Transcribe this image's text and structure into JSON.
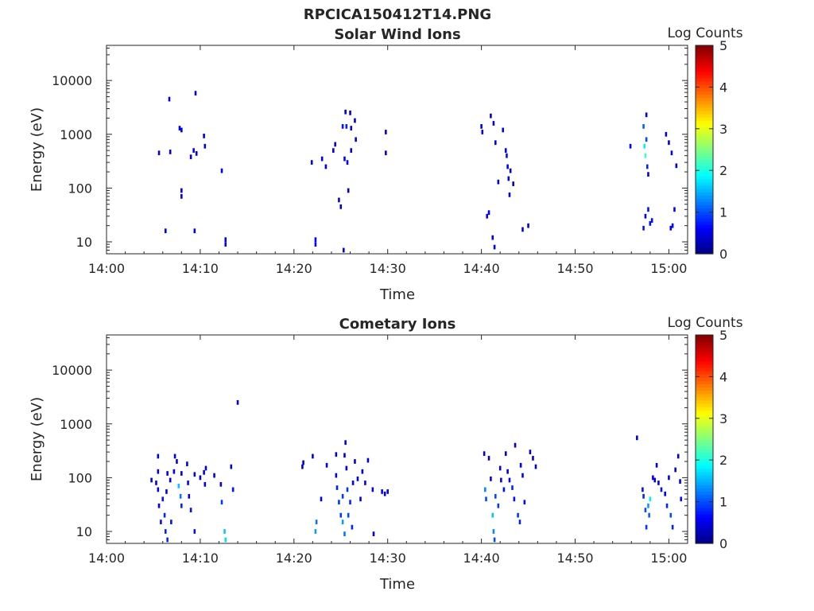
{
  "figure": {
    "title": "RPCICA150412T14.PNG"
  },
  "colors": {
    "axis": "#262626",
    "colormap": [
      "#000080",
      "#0000ff",
      "#0080ff",
      "#00ffff",
      "#80ff80",
      "#ffff00",
      "#ff8000",
      "#ff0000",
      "#800000"
    ]
  },
  "chart_data": [
    {
      "type": "heatmap",
      "title": "Solar Wind Ions",
      "xlabel": "Time",
      "ylabel": "Energy (eV)",
      "yscale": "log",
      "xlim": [
        "14:00",
        "15:02"
      ],
      "ylim": [
        6,
        45000
      ],
      "x_ticks": [
        "14:00",
        "14:10",
        "14:20",
        "14:30",
        "14:40",
        "14:50",
        "15:00"
      ],
      "y_ticks": [
        "10",
        "100",
        "1000",
        "10000"
      ],
      "colorbar": {
        "label": "Log Counts",
        "range": [
          0,
          5
        ],
        "ticks": [
          "0",
          "1",
          "2",
          "3",
          "4",
          "5"
        ]
      },
      "grid": false,
      "pixels": [
        [
          "14:05.6",
          450,
          0.5
        ],
        [
          "14:06.3",
          16,
          0.5
        ],
        [
          "14:06.7",
          4500,
          0.4
        ],
        [
          "14:06.8",
          470,
          0.5
        ],
        [
          "14:07.8",
          1300,
          0.6
        ],
        [
          "14:08.0",
          1200,
          0.5
        ],
        [
          "14:08.0",
          70,
          0.5
        ],
        [
          "14:08.0",
          90,
          0.5
        ],
        [
          "14:09.0",
          380,
          0.5
        ],
        [
          "14:09.3",
          500,
          0.5
        ],
        [
          "14:09.4",
          16,
          0.5
        ],
        [
          "14:09.5",
          5800,
          0.4
        ],
        [
          "14:09.6",
          440,
          0.4
        ],
        [
          "14:10.4",
          930,
          0.5
        ],
        [
          "14:10.5",
          600,
          0.5
        ],
        [
          "14:12.3",
          210,
          0.5
        ],
        [
          "14:12.7",
          9,
          0.6
        ],
        [
          "14:12.7",
          11,
          0.6
        ],
        [
          "14:21.9",
          300,
          0.6
        ],
        [
          "14:22.3",
          9,
          0.6
        ],
        [
          "14:22.3",
          11,
          0.6
        ],
        [
          "14:23.0",
          350,
          0.5
        ],
        [
          "14:23.4",
          250,
          0.5
        ],
        [
          "14:24.2",
          500,
          0.5
        ],
        [
          "14:24.4",
          650,
          0.5
        ],
        [
          "14:24.8",
          60,
          0.5
        ],
        [
          "14:25.0",
          45,
          0.4
        ],
        [
          "14:25.2",
          1400,
          0.7
        ],
        [
          "14:25.4",
          350,
          0.6
        ],
        [
          "14:25.5",
          2600,
          0.4
        ],
        [
          "14:25.6",
          1400,
          0.8
        ],
        [
          "14:25.7",
          300,
          0.6
        ],
        [
          "14:25.8",
          90,
          0.4
        ],
        [
          "14:26.0",
          2500,
          0.4
        ],
        [
          "14:26.1",
          1300,
          0.6
        ],
        [
          "14:26.1",
          500,
          0.5
        ],
        [
          "14:26.5",
          1800,
          0.4
        ],
        [
          "14:26.6",
          800,
          0.4
        ],
        [
          "14:25.3",
          7,
          0.5
        ],
        [
          "14:29.8",
          1100,
          0.4
        ],
        [
          "14:29.8",
          450,
          0.5
        ],
        [
          "14:40.0",
          1400,
          0.6
        ],
        [
          "14:40.1",
          1100,
          0.6
        ],
        [
          "14:40.6",
          30,
          0.6
        ],
        [
          "14:40.8",
          35,
          0.6
        ],
        [
          "14:41.0",
          2200,
          0.4
        ],
        [
          "14:41.2",
          12,
          0.6
        ],
        [
          "14:41.3",
          1600,
          0.4
        ],
        [
          "14:41.4",
          8,
          0.6
        ],
        [
          "14:41.5",
          700,
          0.5
        ],
        [
          "14:41.8",
          130,
          0.4
        ],
        [
          "14:42.3",
          1200,
          0.5
        ],
        [
          "14:42.6",
          500,
          0.6
        ],
        [
          "14:42.7",
          400,
          0.7
        ],
        [
          "14:42.8",
          250,
          0.6
        ],
        [
          "14:42.9",
          150,
          0.5
        ],
        [
          "14:43.0",
          75,
          0.4
        ],
        [
          "14:43.1",
          210,
          0.5
        ],
        [
          "14:43.4",
          120,
          0.4
        ],
        [
          "14:44.4",
          17,
          0.5
        ],
        [
          "14:45.0",
          20,
          0.5
        ],
        [
          "14:55.9",
          600,
          0.6
        ],
        [
          "14:57.3",
          1400,
          1.1
        ],
        [
          "14:57.4",
          600,
          1.8
        ],
        [
          "14:57.5",
          400,
          2.2
        ],
        [
          "14:57.6",
          2300,
          0.5
        ],
        [
          "14:57.6",
          800,
          1.0
        ],
        [
          "14:57.7",
          250,
          0.8
        ],
        [
          "14:57.8",
          180,
          0.5
        ],
        [
          "14:57.3",
          18,
          0.7
        ],
        [
          "14:57.5",
          30,
          0.6
        ],
        [
          "14:57.8",
          40,
          0.7
        ],
        [
          "14:58.0",
          22,
          0.7
        ],
        [
          "14:58.2",
          25,
          0.7
        ],
        [
          "14:59.7",
          1000,
          0.5
        ],
        [
          "15:00.0",
          700,
          0.5
        ],
        [
          "15:00.3",
          450,
          0.6
        ],
        [
          "15:00.2",
          18,
          0.6
        ],
        [
          "15:00.4",
          20,
          0.7
        ],
        [
          "15:00.6",
          40,
          0.6
        ],
        [
          "15:00.8",
          260,
          0.5
        ]
      ]
    },
    {
      "type": "heatmap",
      "title": "Cometary Ions",
      "xlabel": "Time",
      "ylabel": "Energy (eV)",
      "yscale": "log",
      "xlim": [
        "14:00",
        "15:02"
      ],
      "ylim": [
        6,
        45000
      ],
      "x_ticks": [
        "14:00",
        "14:10",
        "14:20",
        "14:30",
        "14:40",
        "14:50",
        "15:00"
      ],
      "y_ticks": [
        "10",
        "100",
        "1000",
        "10000"
      ],
      "colorbar": {
        "label": "Log Counts",
        "range": [
          0,
          5
        ],
        "ticks": [
          "0",
          "1",
          "2",
          "3",
          "4",
          "5"
        ]
      },
      "grid": false,
      "pixels": [
        [
          "14:04.8",
          90,
          0.5
        ],
        [
          "14:05.3",
          80,
          0.5
        ],
        [
          "14:05.5",
          250,
          0.4
        ],
        [
          "14:05.5",
          130,
          0.5
        ],
        [
          "14:05.5",
          60,
          0.6
        ],
        [
          "14:05.6",
          30,
          0.6
        ],
        [
          "14:05.8",
          15,
          0.7
        ],
        [
          "14:06.0",
          40,
          0.7
        ],
        [
          "14:06.2",
          20,
          0.8
        ],
        [
          "14:06.3",
          10,
          0.8
        ],
        [
          "14:06.4",
          55,
          0.6
        ],
        [
          "14:06.5",
          7,
          0.8
        ],
        [
          "14:06.5",
          120,
          0.5
        ],
        [
          "14:06.8",
          90,
          0.5
        ],
        [
          "14:06.9",
          15,
          0.7
        ],
        [
          "14:07.2",
          130,
          0.5
        ],
        [
          "14:07.3",
          250,
          0.4
        ],
        [
          "14:07.5",
          200,
          0.5
        ],
        [
          "14:07.7",
          70,
          1.6
        ],
        [
          "14:07.9",
          45,
          1.2
        ],
        [
          "14:08.0",
          120,
          0.5
        ],
        [
          "14:08.0",
          30,
          0.8
        ],
        [
          "14:08.6",
          180,
          0.5
        ],
        [
          "14:08.7",
          80,
          0.6
        ],
        [
          "14:08.8",
          45,
          0.6
        ],
        [
          "14:09.0",
          25,
          0.7
        ],
        [
          "14:09.4",
          10,
          0.7
        ],
        [
          "14:09.4",
          115,
          0.5
        ],
        [
          "14:10.0",
          100,
          0.5
        ],
        [
          "14:10.4",
          125,
          0.5
        ],
        [
          "14:10.5",
          75,
          0.6
        ],
        [
          "14:10.6",
          150,
          0.4
        ],
        [
          "14:11.5",
          110,
          0.5
        ],
        [
          "14:12.2",
          75,
          0.6
        ],
        [
          "14:12.3",
          35,
          0.9
        ],
        [
          "14:12.6",
          10,
          1.6
        ],
        [
          "14:12.7",
          7,
          1.7
        ],
        [
          "14:13.3",
          160,
          0.5
        ],
        [
          "14:13.5",
          60,
          0.7
        ],
        [
          "14:14.0",
          2500,
          0.4
        ],
        [
          "14:20.9",
          160,
          0.4
        ],
        [
          "14:21.0",
          190,
          0.4
        ],
        [
          "14:22.0",
          250,
          0.4
        ],
        [
          "14:22.3",
          10,
          1.4
        ],
        [
          "14:22.4",
          15,
          1.2
        ],
        [
          "14:22.9",
          40,
          0.6
        ],
        [
          "14:23.5",
          170,
          0.5
        ],
        [
          "14:24.5",
          270,
          0.4
        ],
        [
          "14:24.5",
          110,
          0.5
        ],
        [
          "14:24.6",
          65,
          0.8
        ],
        [
          "14:24.8",
          35,
          0.9
        ],
        [
          "14:25.0",
          20,
          0.9
        ],
        [
          "14:25.2",
          15,
          1.4
        ],
        [
          "14:25.2",
          45,
          0.9
        ],
        [
          "14:25.4",
          9,
          1.2
        ],
        [
          "14:25.4",
          260,
          0.5
        ],
        [
          "14:25.5",
          450,
          0.5
        ],
        [
          "14:25.6",
          150,
          0.6
        ],
        [
          "14:25.7",
          60,
          0.9
        ],
        [
          "14:25.8",
          20,
          1.0
        ],
        [
          "14:26.0",
          35,
          0.8
        ],
        [
          "14:26.2",
          12,
          0.8
        ],
        [
          "14:26.3",
          80,
          0.6
        ],
        [
          "14:26.5",
          200,
          0.5
        ],
        [
          "14:26.8",
          95,
          0.6
        ],
        [
          "14:27.1",
          40,
          0.6
        ],
        [
          "14:27.3",
          130,
          0.5
        ],
        [
          "14:27.6",
          80,
          0.6
        ],
        [
          "14:27.9",
          210,
          0.4
        ],
        [
          "14:28.4",
          60,
          0.5
        ],
        [
          "14:28.5",
          9,
          0.5
        ],
        [
          "14:29.4",
          55,
          0.6
        ],
        [
          "14:29.7",
          50,
          0.6
        ],
        [
          "14:30.0",
          55,
          0.6
        ],
        [
          "14:40.3",
          280,
          0.4
        ],
        [
          "14:40.4",
          60,
          1.3
        ],
        [
          "14:40.5",
          40,
          1.0
        ],
        [
          "14:40.8",
          230,
          0.4
        ],
        [
          "14:41.0",
          95,
          0.6
        ],
        [
          "14:41.2",
          20,
          1.6
        ],
        [
          "14:41.3",
          10,
          1.3
        ],
        [
          "14:41.4",
          7,
          1.0
        ],
        [
          "14:41.5",
          45,
          1.0
        ],
        [
          "14:41.8",
          30,
          0.9
        ],
        [
          "14:42.0",
          150,
          0.5
        ],
        [
          "14:42.1",
          90,
          0.6
        ],
        [
          "14:42.4",
          60,
          0.7
        ],
        [
          "14:42.6",
          280,
          0.4
        ],
        [
          "14:42.8",
          130,
          0.5
        ],
        [
          "14:43.0",
          90,
          0.6
        ],
        [
          "14:43.3",
          65,
          0.8
        ],
        [
          "14:43.5",
          40,
          0.7
        ],
        [
          "14:43.6",
          400,
          0.4
        ],
        [
          "14:43.9",
          20,
          0.9
        ],
        [
          "14:44.1",
          15,
          0.8
        ],
        [
          "14:44.2",
          170,
          0.5
        ],
        [
          "14:44.4",
          110,
          0.6
        ],
        [
          "14:44.6",
          35,
          0.7
        ],
        [
          "14:45.2",
          300,
          0.4
        ],
        [
          "14:45.5",
          230,
          0.4
        ],
        [
          "14:45.8",
          160,
          0.4
        ],
        [
          "14:56.6",
          550,
          0.5
        ],
        [
          "14:57.2",
          60,
          0.7
        ],
        [
          "14:57.3",
          45,
          0.8
        ],
        [
          "14:57.5",
          25,
          1.0
        ],
        [
          "14:57.6",
          12,
          0.9
        ],
        [
          "14:57.8",
          30,
          1.4
        ],
        [
          "14:57.9",
          20,
          1.1
        ],
        [
          "14:58.0",
          40,
          1.8
        ],
        [
          "14:58.3",
          100,
          0.6
        ],
        [
          "14:58.5",
          90,
          0.6
        ],
        [
          "14:58.7",
          170,
          0.5
        ],
        [
          "14:58.9",
          80,
          0.6
        ],
        [
          "14:59.2",
          60,
          0.7
        ],
        [
          "14:59.6",
          50,
          0.6
        ],
        [
          "14:59.8",
          30,
          0.8
        ],
        [
          "15:00.0",
          100,
          0.5
        ],
        [
          "15:00.2",
          20,
          1.0
        ],
        [
          "15:00.4",
          12,
          0.8
        ],
        [
          "15:00.7",
          140,
          0.5
        ],
        [
          "15:01.0",
          250,
          0.4
        ],
        [
          "15:01.2",
          85,
          0.5
        ],
        [
          "15:01.3",
          40,
          0.7
        ]
      ]
    }
  ]
}
